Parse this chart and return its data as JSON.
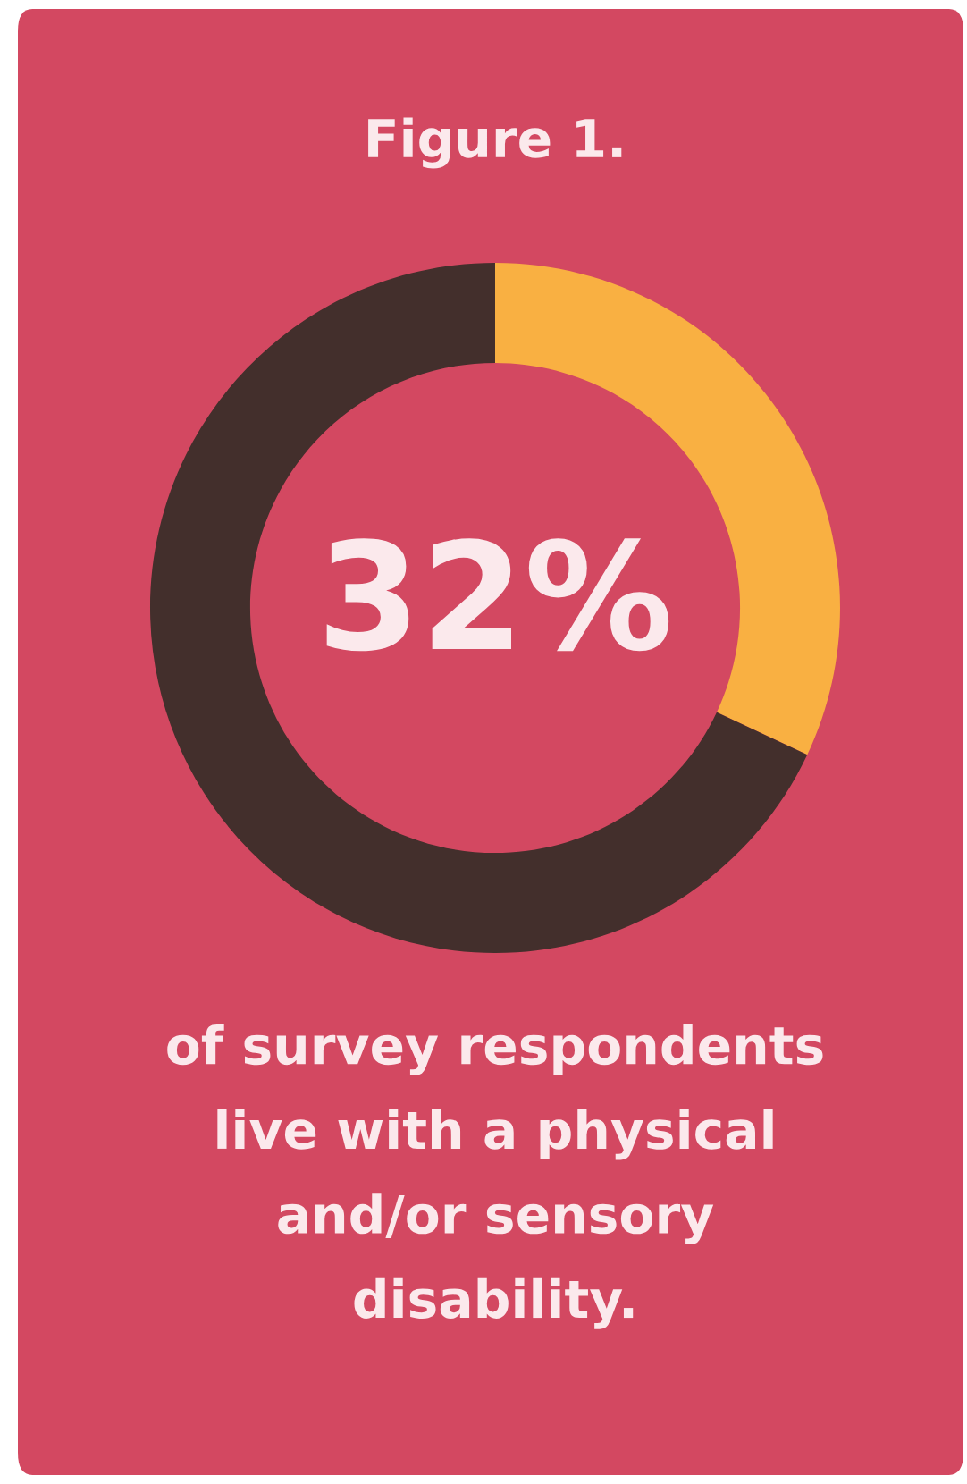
{
  "chart_data": {
    "type": "donut",
    "title": "Figure 1.",
    "categories": [
      null,
      null
    ],
    "values": [
      32,
      68
    ],
    "colors": [
      "#f9b042",
      "#432f2c"
    ],
    "value_labels": [
      "32%",
      null
    ],
    "annotations": [
      "of survey respondents\nlive with a physical\nand/or sensory\ndisability."
    ],
    "legend": false
  }
}
